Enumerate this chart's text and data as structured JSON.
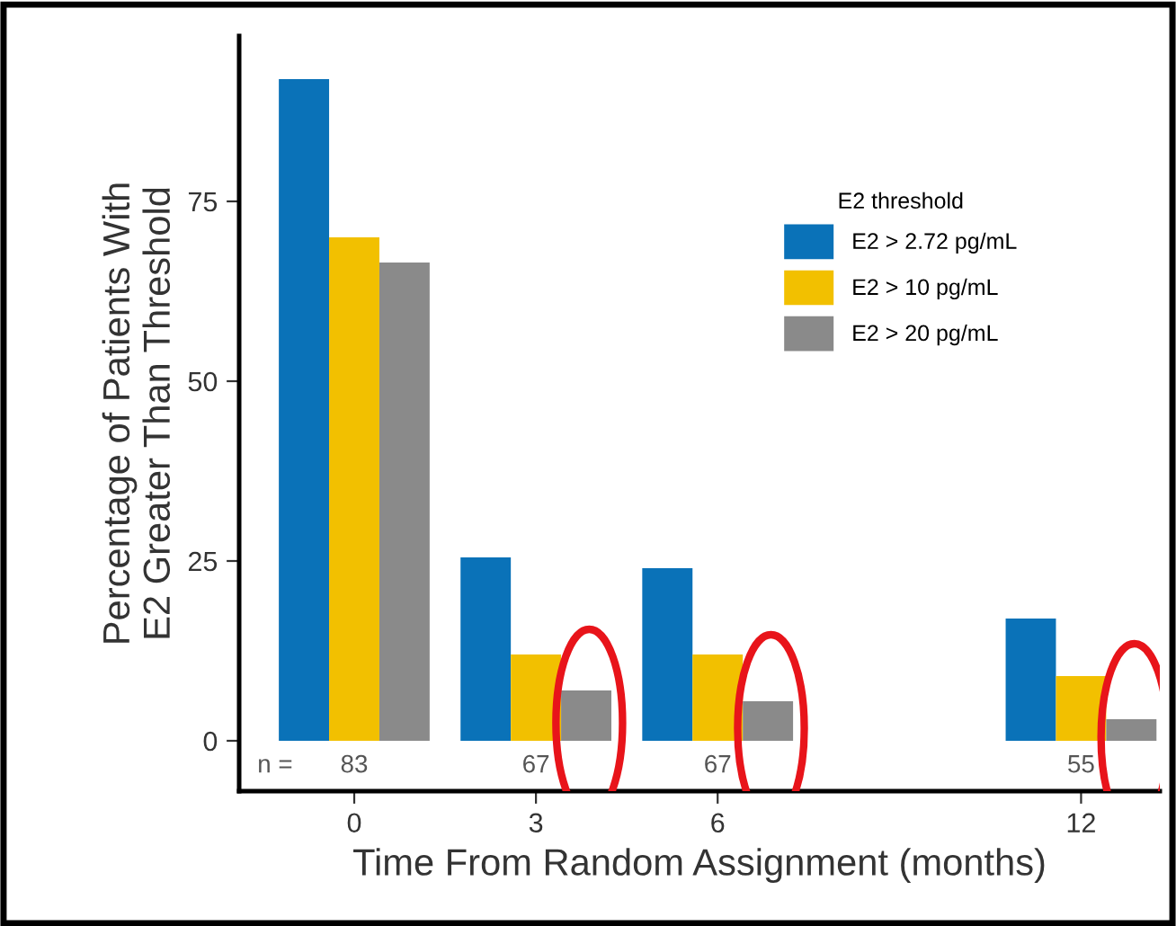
{
  "chart_data": {
    "type": "bar",
    "xlabel": "Time From Random Assignment (months)",
    "ylabel": "Percentage of Patients With\nE2 Greater Than Threshold",
    "legend_title": "E2 threshold",
    "x": [
      0,
      3,
      6,
      12
    ],
    "series": [
      {
        "name": "E2 > 2.72 pg/mL",
        "color": "#0a72b8",
        "values": [
          92,
          25.5,
          24,
          17
        ]
      },
      {
        "name": "E2 > 10 pg/mL",
        "color": "#f2c000",
        "values": [
          70,
          12,
          12,
          9
        ]
      },
      {
        "name": "E2 > 20 pg/mL",
        "color": "#8a8a8a",
        "values": [
          66.5,
          7,
          5.5,
          3
        ]
      }
    ],
    "xlim": [
      -1.9,
      13.3
    ],
    "xticks": [
      0,
      3,
      6,
      12
    ],
    "ylim": [
      -7,
      98
    ],
    "yticks": [
      0,
      25,
      50,
      75
    ],
    "annotations": [
      "n =",
      "83",
      "67",
      "67",
      "55"
    ],
    "grid": false,
    "legend": "right"
  }
}
